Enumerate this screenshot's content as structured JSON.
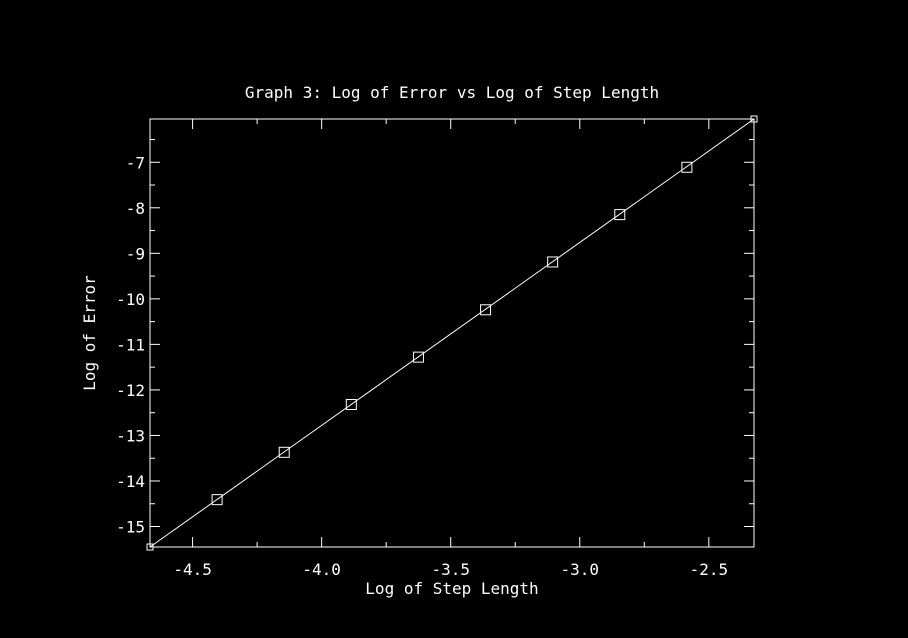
{
  "chart_data": {
    "type": "line",
    "title": "Graph 3: Log of Error vs Log of Step Length",
    "xlabel": "Log of Step Length",
    "ylabel": "Log of Error",
    "xlim": [
      -4.665,
      -2.325
    ],
    "ylim": [
      -15.45,
      -6.05
    ],
    "xticks": [
      {
        "value": -4.5,
        "label": "-4.5"
      },
      {
        "value": -4.0,
        "label": "-4.0"
      },
      {
        "value": -3.5,
        "label": "-3.5"
      },
      {
        "value": -3.0,
        "label": "-3.0"
      },
      {
        "value": -2.5,
        "label": "-2.5"
      }
    ],
    "yticks": [
      {
        "value": -7,
        "label": "-7"
      },
      {
        "value": -8,
        "label": "-8"
      },
      {
        "value": -9,
        "label": "-9"
      },
      {
        "value": -10,
        "label": "-10"
      },
      {
        "value": -11,
        "label": "-11"
      },
      {
        "value": -12,
        "label": "-12"
      },
      {
        "value": -13,
        "label": "-13"
      },
      {
        "value": -14,
        "label": "-14"
      },
      {
        "value": -15,
        "label": "-15"
      }
    ],
    "fit_line": {
      "x": [
        -4.665,
        -2.325
      ],
      "y": [
        -15.45,
        -6.05
      ]
    },
    "series": [
      {
        "x": [
          -4.405,
          -4.145,
          -3.885,
          -3.625,
          -3.365,
          -3.105,
          -2.845,
          -2.585
        ],
        "y": [
          -14.41,
          -13.37,
          -12.32,
          -11.28,
          -10.24,
          -9.19,
          -8.15,
          -7.11
        ]
      }
    ],
    "colors": {
      "background": "#000000",
      "foreground": "#ffffff"
    }
  }
}
